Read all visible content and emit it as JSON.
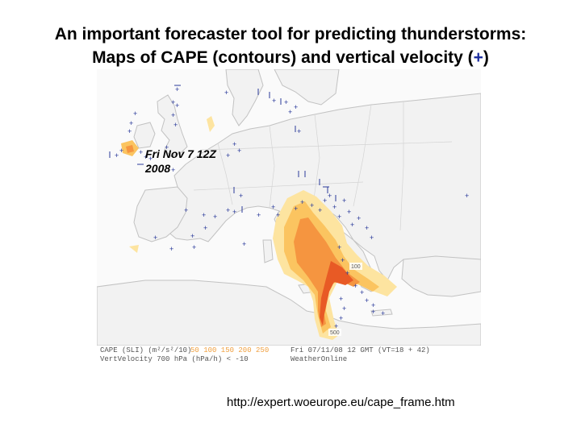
{
  "title": {
    "line1": "An important forecaster tool for predicting thunderstorms:",
    "line2_before": "Maps of CAPE (contours) and vertical velocity (",
    "line2_symbol": "+",
    "line2_after": ")"
  },
  "map": {
    "date_line1": "Fri Nov 7  12Z",
    "date_line2": "2008",
    "cape_label_1": "100",
    "cape_label_2": "500",
    "caption": {
      "left_line1": "CAPE (SLI) (m²/s²/10)",
      "left_line2": "VertVelocity 700 hPa (hPa/h) < -10",
      "legend_levels": "50 100 150 200 250",
      "right_line1": "Fri 07/11/08 12 GMT (VT=18 + 42)",
      "right_line2": "WeatherOnline"
    },
    "colors": {
      "land": "#f2f2f2",
      "sea": "#fafafa",
      "coast": "#c2c2c2",
      "cape_low": "#fde4a0",
      "cape_mid": "#fbc460",
      "cape_high": "#f59540",
      "cape_max": "#e85a25",
      "marker": "#2a3a9a"
    }
  },
  "source_url": "http://expert.woeurope.eu/cape_frame.htm"
}
